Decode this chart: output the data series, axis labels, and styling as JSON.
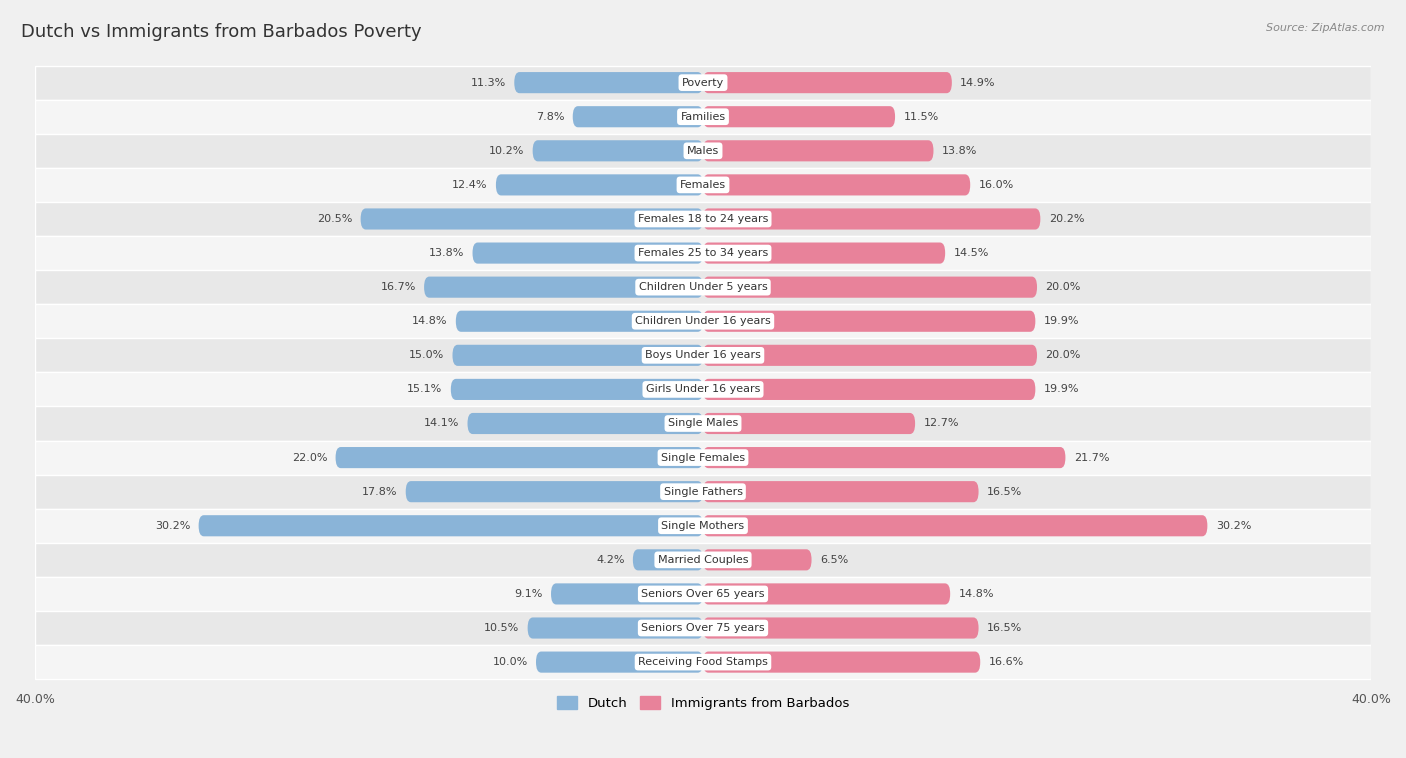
{
  "title": "Dutch vs Immigrants from Barbados Poverty",
  "source": "Source: ZipAtlas.com",
  "categories": [
    "Poverty",
    "Families",
    "Males",
    "Females",
    "Females 18 to 24 years",
    "Females 25 to 34 years",
    "Children Under 5 years",
    "Children Under 16 years",
    "Boys Under 16 years",
    "Girls Under 16 years",
    "Single Males",
    "Single Females",
    "Single Fathers",
    "Single Mothers",
    "Married Couples",
    "Seniors Over 65 years",
    "Seniors Over 75 years",
    "Receiving Food Stamps"
  ],
  "dutch_values": [
    11.3,
    7.8,
    10.2,
    12.4,
    20.5,
    13.8,
    16.7,
    14.8,
    15.0,
    15.1,
    14.1,
    22.0,
    17.8,
    30.2,
    4.2,
    9.1,
    10.5,
    10.0
  ],
  "immigrants_values": [
    14.9,
    11.5,
    13.8,
    16.0,
    20.2,
    14.5,
    20.0,
    19.9,
    20.0,
    19.9,
    12.7,
    21.7,
    16.5,
    30.2,
    6.5,
    14.8,
    16.5,
    16.6
  ],
  "dutch_color": "#8ab4d8",
  "immigrants_color": "#e8829a",
  "dutch_label": "Dutch",
  "immigrants_label": "Immigrants from Barbados",
  "xlim": 40.0,
  "background_color": "#f0f0f0",
  "row_colors": [
    "#e8e8e8",
    "#f5f5f5"
  ],
  "title_fontsize": 13,
  "label_fontsize": 8,
  "value_fontsize": 8
}
